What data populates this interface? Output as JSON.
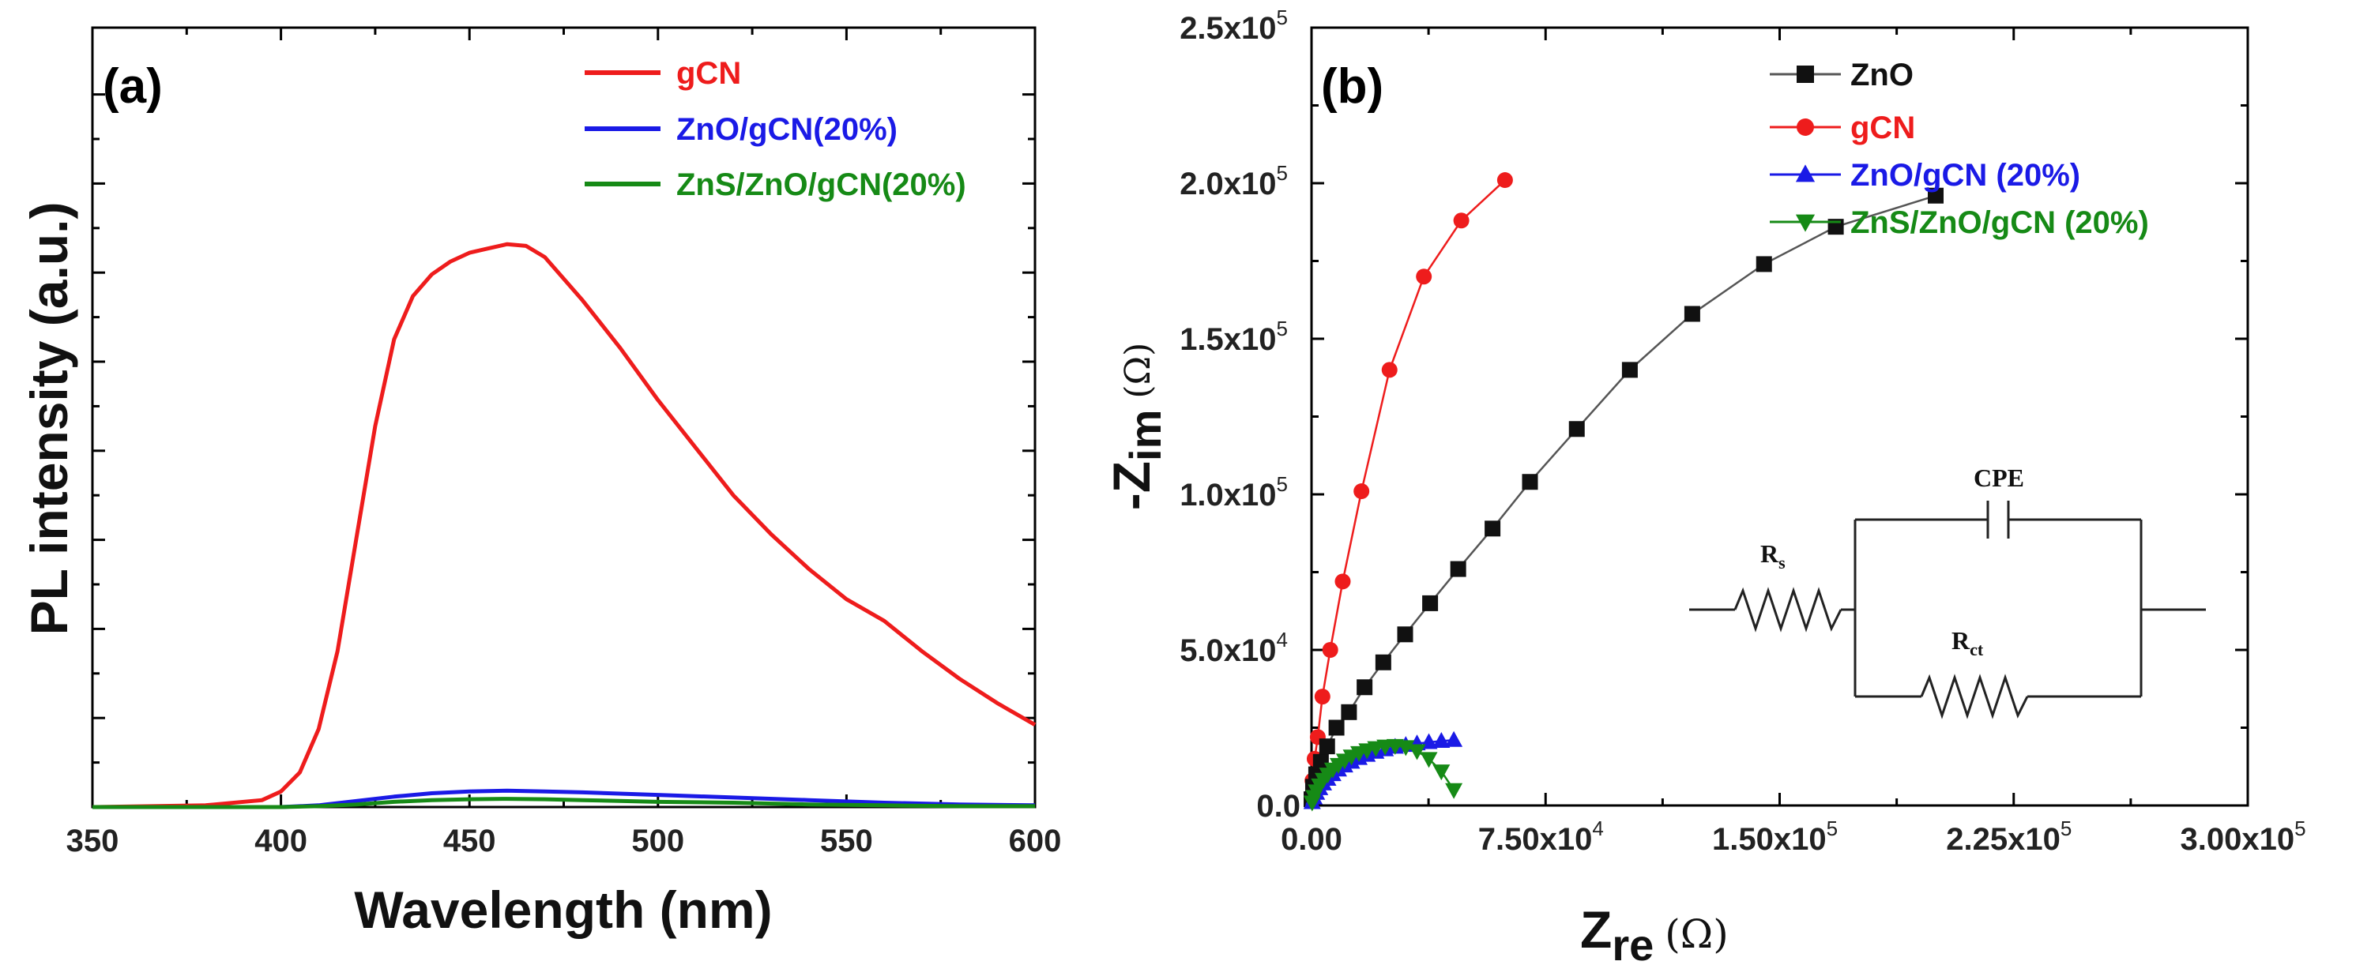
{
  "colors": {
    "gCN": "#ee1c1c",
    "ZnO_gCN": "#1a1ae6",
    "ZnS_ZnO_gCN": "#168a16",
    "ZnO": "#111111",
    "ZnO_line": "#555555",
    "axis": "#000000"
  },
  "chart_data": [
    {
      "id": "a",
      "type": "line",
      "panel_label": "(a)",
      "xlabel": "Wavelength (nm)",
      "ylabel": "PL intensity (a.u.)",
      "xlim": [
        350,
        600
      ],
      "ylim": [
        0,
        90
      ],
      "x_ticks": [
        350,
        400,
        450,
        500,
        550,
        600
      ],
      "x_tick_labels": [
        "350",
        "400",
        "450",
        "500",
        "550",
        "600"
      ],
      "y_tick_labels_shown": false,
      "legend_position": "top-right",
      "series": [
        {
          "name": "gCN",
          "color_key": "gCN",
          "x": [
            350,
            380,
            395,
            400,
            405,
            410,
            415,
            420,
            425,
            430,
            435,
            440,
            445,
            450,
            455,
            460,
            465,
            470,
            475,
            480,
            490,
            500,
            510,
            520,
            530,
            540,
            550,
            560,
            570,
            580,
            590,
            600
          ],
          "y": [
            0,
            0.2,
            0.8,
            1.8,
            4,
            9,
            18,
            31,
            44,
            54,
            59,
            61.5,
            63,
            64,
            64.5,
            65,
            64.8,
            63.5,
            61,
            58.5,
            53,
            47,
            41.5,
            36,
            31.5,
            27.5,
            24,
            21.5,
            18,
            14.8,
            12,
            9.5
          ]
        },
        {
          "name": "ZnO/gCN(20%)",
          "color_key": "ZnO_gCN",
          "x": [
            350,
            400,
            410,
            420,
            430,
            440,
            450,
            460,
            470,
            480,
            500,
            520,
            540,
            560,
            580,
            600
          ],
          "y": [
            0,
            0,
            0.2,
            0.7,
            1.2,
            1.6,
            1.8,
            1.9,
            1.8,
            1.7,
            1.4,
            1.1,
            0.8,
            0.5,
            0.3,
            0.2
          ]
        },
        {
          "name": "ZnS/ZnO/gCN(20%)",
          "color_key": "ZnS_ZnO_gCN",
          "x": [
            350,
            400,
            410,
            420,
            430,
            440,
            450,
            460,
            470,
            480,
            500,
            520,
            540,
            560,
            580,
            600
          ],
          "y": [
            0,
            0,
            0.1,
            0.3,
            0.6,
            0.8,
            0.9,
            0.95,
            0.9,
            0.8,
            0.6,
            0.5,
            0.3,
            0.2,
            0.1,
            0.1
          ]
        }
      ]
    },
    {
      "id": "b",
      "type": "scatter",
      "panel_label": "(b)",
      "xlabel_main": "Z",
      "xlabel_sub": "re",
      "xlabel_unit": "(Ω)",
      "ylabel_prefix": "-Z",
      "ylabel_sub": "im",
      "ylabel_unit": "(Ω)",
      "xlim": [
        0,
        300000
      ],
      "ylim": [
        0,
        250000
      ],
      "x_ticks": [
        0,
        75000,
        150000,
        225000,
        300000
      ],
      "x_tick_labels": [
        {
          "mant": "0.00",
          "exp": ""
        },
        {
          "mant": "7.50x10",
          "exp": "4"
        },
        {
          "mant": "1.50x10",
          "exp": "5"
        },
        {
          "mant": "2.25x10",
          "exp": "5"
        },
        {
          "mant": "3.00x10",
          "exp": "5"
        }
      ],
      "y_ticks": [
        0,
        50000,
        100000,
        150000,
        200000,
        250000
      ],
      "y_tick_labels": [
        {
          "mant": "0.0",
          "exp": ""
        },
        {
          "mant": "5.0x10",
          "exp": "4"
        },
        {
          "mant": "1.0x10",
          "exp": "5"
        },
        {
          "mant": "1.5x10",
          "exp": "5"
        },
        {
          "mant": "2.0x10",
          "exp": "5"
        },
        {
          "mant": "2.5x10",
          "exp": "5"
        }
      ],
      "legend_position": "top-right",
      "series": [
        {
          "name": "ZnO",
          "marker": "square",
          "color_key": "ZnO",
          "line_color_key": "ZnO_line",
          "x": [
            0,
            500,
            1500,
            3000,
            5000,
            8000,
            12000,
            17000,
            23000,
            30000,
            38000,
            47000,
            58000,
            70000,
            85000,
            102000,
            122000,
            145000,
            168000,
            200000
          ],
          "y": [
            2000,
            6000,
            10000,
            14000,
            19000,
            25000,
            30000,
            38000,
            46000,
            55000,
            65000,
            76000,
            89000,
            104000,
            121000,
            140000,
            158000,
            174000,
            186000,
            196000
          ]
        },
        {
          "name": "gCN",
          "marker": "circle",
          "color_key": "gCN",
          "line_color_key": "gCN",
          "x": [
            300,
            1000,
            2000,
            3500,
            6000,
            10000,
            16000,
            25000,
            36000,
            48000,
            62000
          ],
          "y": [
            8000,
            15000,
            22000,
            35000,
            50000,
            72000,
            101000,
            140000,
            170000,
            188000,
            201000
          ]
        },
        {
          "name": "ZnO/gCN (20%)",
          "marker": "triangle-up",
          "color_key": "ZnO_gCN",
          "line_color_key": "ZnO_gCN",
          "x": [
            200,
            800,
            1600,
            2600,
            3800,
            5200,
            6800,
            8600,
            10600,
            12800,
            15200,
            17800,
            20600,
            23600,
            26800,
            30200,
            33800,
            37600,
            41600,
            45600
          ],
          "y": [
            1000,
            2500,
            4000,
            5500,
            7000,
            8500,
            10000,
            11500,
            12800,
            14000,
            15200,
            16200,
            17200,
            18000,
            18800,
            19400,
            19900,
            20300,
            20700,
            21000
          ]
        },
        {
          "name": "ZnS/ZnO/gCN (20%)",
          "marker": "triangle-down",
          "color_key": "ZnS_ZnO_gCN",
          "line_color_key": "ZnS_ZnO_gCN",
          "x": [
            200,
            800,
            1600,
            2600,
            3800,
            5200,
            6800,
            8600,
            10600,
            12800,
            15200,
            17800,
            20600,
            23600,
            26800,
            30200,
            33800,
            37600,
            41600,
            45600
          ],
          "y": [
            1000,
            2800,
            4600,
            6500,
            8300,
            10000,
            11600,
            13100,
            14500,
            15800,
            16900,
            17800,
            18500,
            19000,
            19200,
            18800,
            17500,
            15000,
            11000,
            5000
          ]
        }
      ],
      "inset_circuit": {
        "rs_main": "R",
        "rs_sub": "s",
        "cpe": "CPE",
        "rct_main": "R",
        "rct_sub": "ct"
      }
    }
  ]
}
